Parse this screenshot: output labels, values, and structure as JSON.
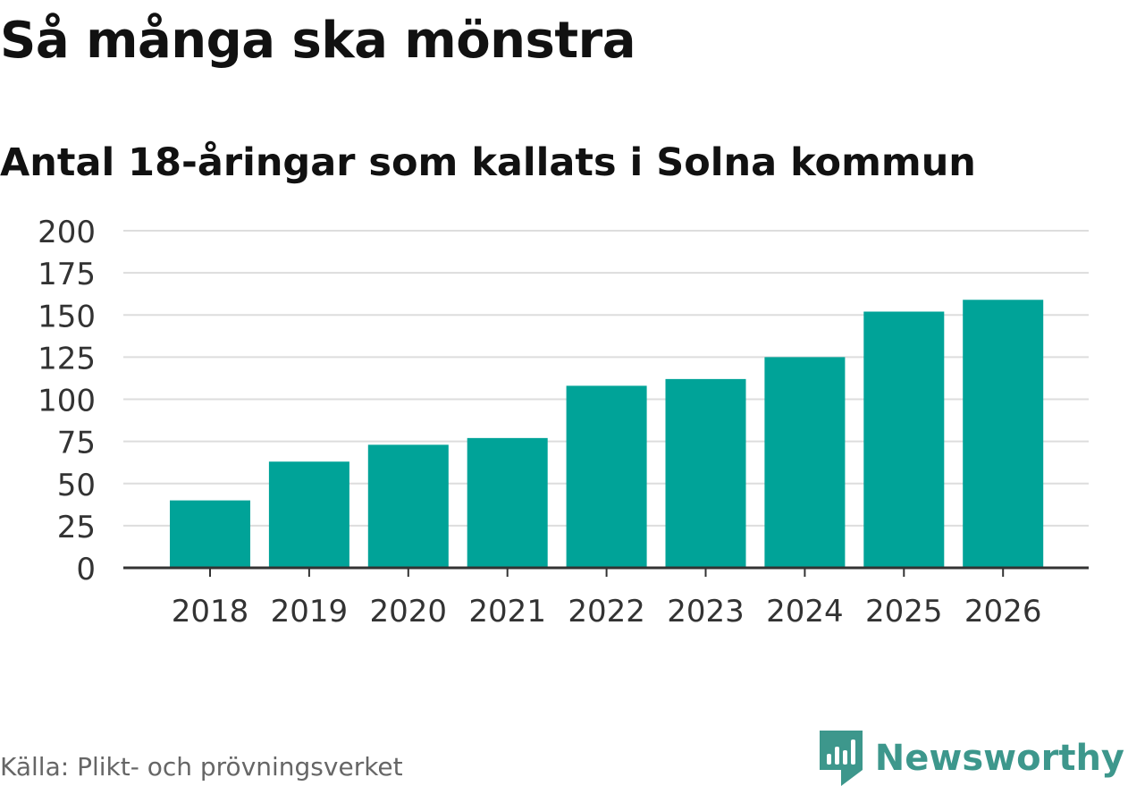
{
  "header": {
    "title": "Så många ska mönstra",
    "subtitle": "Antal 18-åringar som kallats i Solna kommun"
  },
  "footer": {
    "source": "Källa: Plikt- och prövningsverket",
    "brand": "Newsworthy"
  },
  "colors": {
    "bar": "#00a398",
    "grid": "#dddddd",
    "axis": "#333333",
    "brand": "#3d978c"
  },
  "chart_data": {
    "type": "bar",
    "title": "Så många ska mönstra",
    "subtitle": "Antal 18-åringar som kallats i Solna kommun",
    "xlabel": "",
    "ylabel": "",
    "categories": [
      "2018",
      "2019",
      "2020",
      "2021",
      "2022",
      "2023",
      "2024",
      "2025",
      "2026"
    ],
    "values": [
      40,
      63,
      73,
      77,
      108,
      112,
      125,
      152,
      159
    ],
    "ylim": [
      0,
      200
    ],
    "yticks": [
      "0",
      "25",
      "50",
      "75",
      "100",
      "125",
      "150",
      "175",
      "200"
    ],
    "grid": true
  }
}
